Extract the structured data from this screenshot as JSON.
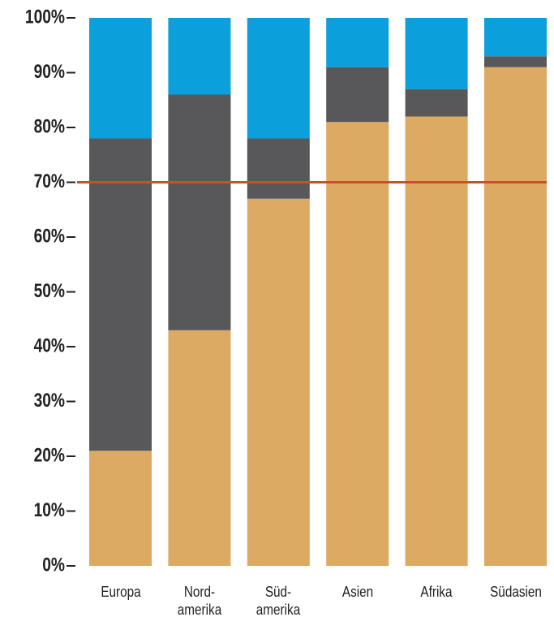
{
  "chart_data": {
    "type": "stacked-bar",
    "categories": [
      "Europa",
      "Nord-\namerika",
      "Süd-\namerika",
      "Asien",
      "Afrika",
      "Südasien"
    ],
    "series": [
      {
        "color": "#dcaa62",
        "values": [
          21,
          43,
          67,
          81,
          82,
          91
        ]
      },
      {
        "color": "#58585a",
        "values": [
          57,
          43,
          11,
          10,
          5,
          2
        ]
      },
      {
        "color": "#0b9fdb",
        "values": [
          22,
          14,
          22,
          9,
          13,
          7
        ]
      }
    ],
    "ylim": [
      0,
      100
    ],
    "yticks": [
      {
        "value": 0,
        "label": "0%"
      },
      {
        "value": 10,
        "label": "10%"
      },
      {
        "value": 20,
        "label": "20%"
      },
      {
        "value": 30,
        "label": "30%"
      },
      {
        "value": 40,
        "label": "40%"
      },
      {
        "value": 50,
        "label": "50%"
      },
      {
        "value": 60,
        "label": "60%"
      },
      {
        "value": 70,
        "label": "70%"
      },
      {
        "value": 80,
        "label": "80%"
      },
      {
        "value": 90,
        "label": "90%"
      },
      {
        "value": 100,
        "label": "100%"
      }
    ],
    "reference_line": {
      "value": 70,
      "color": "#c4532b"
    }
  }
}
